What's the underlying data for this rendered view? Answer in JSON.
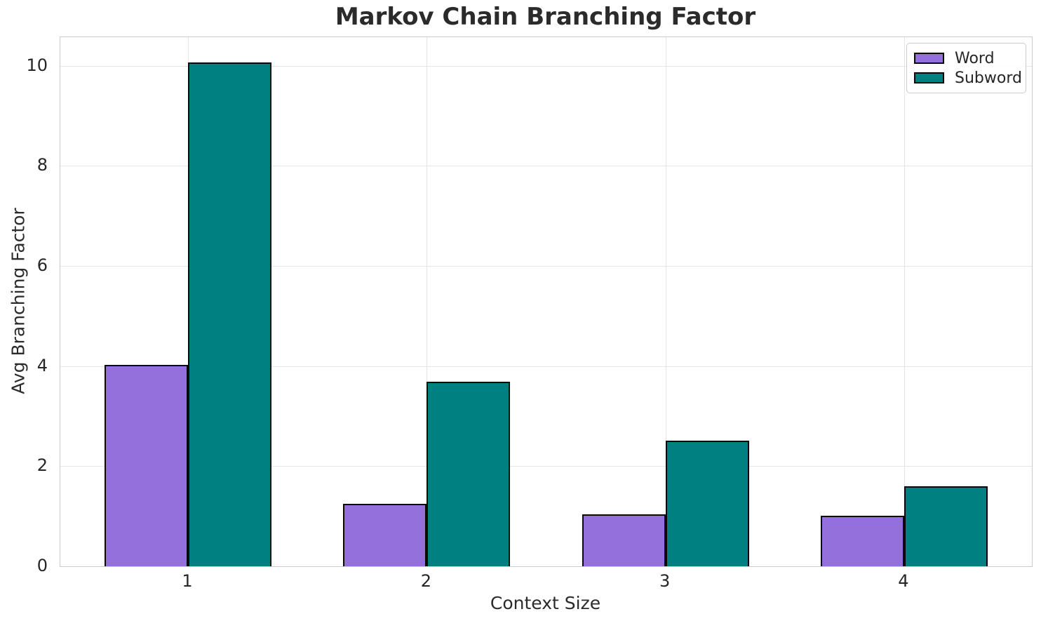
{
  "chart_data": {
    "type": "bar",
    "title": "Markov Chain Branching Factor",
    "xlabel": "Context Size",
    "ylabel": "Avg Branching Factor",
    "categories": [
      "1",
      "2",
      "3",
      "4"
    ],
    "series": [
      {
        "name": "Word",
        "color": "#9370DB",
        "values": [
          4.03,
          1.25,
          1.04,
          1.01
        ]
      },
      {
        "name": "Subword",
        "color": "#008080",
        "values": [
          10.07,
          3.69,
          2.51,
          1.6
        ]
      }
    ],
    "bar_width": 0.35,
    "bar_edge_color": "#0a0a0a",
    "xticks": [
      1,
      2,
      3,
      4
    ],
    "yticks": [
      0,
      2,
      4,
      6,
      8,
      10
    ],
    "xlim": [
      0.465,
      4.535
    ],
    "ylim": [
      0,
      10.57
    ],
    "grid": true,
    "legend_position": "upper right",
    "colors": {
      "background": "#ffffff",
      "grid": "#e7e7e7",
      "spine": "#cbcbcb",
      "text": "#262626"
    }
  }
}
